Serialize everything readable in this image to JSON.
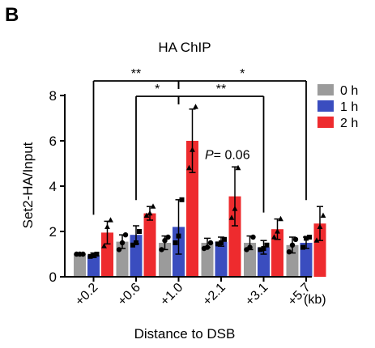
{
  "panel_label": "B",
  "chart_data": {
    "type": "bar",
    "title": "HA ChIP",
    "xlabel": "Distance to DSB",
    "ylabel": "Set2-HA/Input",
    "x_unit": "(kb)",
    "categories": [
      "+0.2",
      "+0.6",
      "+1.0",
      "+2.1",
      "+3.1",
      "+5.7"
    ],
    "ylim": [
      0,
      8
    ],
    "yticks": [
      "0",
      "2",
      "4",
      "6",
      "8"
    ],
    "series": [
      {
        "name": "0 h",
        "color": "#9b9b9b",
        "values": [
          1.0,
          1.55,
          1.5,
          1.5,
          1.5,
          1.4
        ],
        "errors": [
          0.05,
          0.3,
          0.3,
          0.2,
          0.3,
          0.35
        ],
        "points": [
          [
            1.0,
            1.0,
            1.0
          ],
          [
            1.2,
            1.5,
            1.85
          ],
          [
            1.2,
            1.6,
            1.75
          ],
          [
            1.25,
            1.3,
            1.5
          ],
          [
            1.2,
            1.3,
            1.75
          ],
          [
            1.1,
            1.4,
            1.65
          ]
        ]
      },
      {
        "name": "1 h",
        "color": "#3a4dbf",
        "values": [
          0.95,
          1.85,
          2.2,
          1.55,
          1.3,
          1.5
        ],
        "errors": [
          0.1,
          0.4,
          1.2,
          0.2,
          0.3,
          0.25
        ],
        "points": [
          [
            0.9,
            0.95,
            1.0
          ],
          [
            1.4,
            1.5,
            2.0
          ],
          [
            1.5,
            1.8,
            3.4
          ],
          [
            1.45,
            1.5,
            1.65
          ],
          [
            1.2,
            1.25,
            1.4
          ],
          [
            1.3,
            1.7,
            1.75
          ]
        ]
      },
      {
        "name": "2 h",
        "color": "#ee2b2e",
        "values": [
          1.95,
          2.8,
          6.0,
          3.55,
          2.1,
          2.35
        ],
        "errors": [
          0.5,
          0.3,
          1.4,
          1.3,
          0.45,
          0.75
        ],
        "points": [
          [
            1.35,
            2.2,
            2.5
          ],
          [
            2.7,
            2.8,
            3.1
          ],
          [
            4.8,
            5.6,
            7.5
          ],
          [
            2.6,
            3.0,
            4.8
          ],
          [
            1.75,
            2.0,
            2.55
          ],
          [
            1.6,
            2.2,
            2.7
          ]
        ]
      }
    ],
    "annotations": {
      "comparisons": [
        {
          "from": "+0.2",
          "to": "+1.0",
          "label": "**"
        },
        {
          "from": "+0.6",
          "to": "+1.0",
          "label": "*"
        },
        {
          "from": "+1.0",
          "to": "+3.1",
          "label": "**"
        },
        {
          "from": "+1.0",
          "to": "+5.7",
          "label": "*"
        }
      ],
      "pvalue": {
        "category": "+2.1",
        "prefix": "P",
        "text": "= 0.06"
      }
    },
    "legend_position": "top-right"
  }
}
